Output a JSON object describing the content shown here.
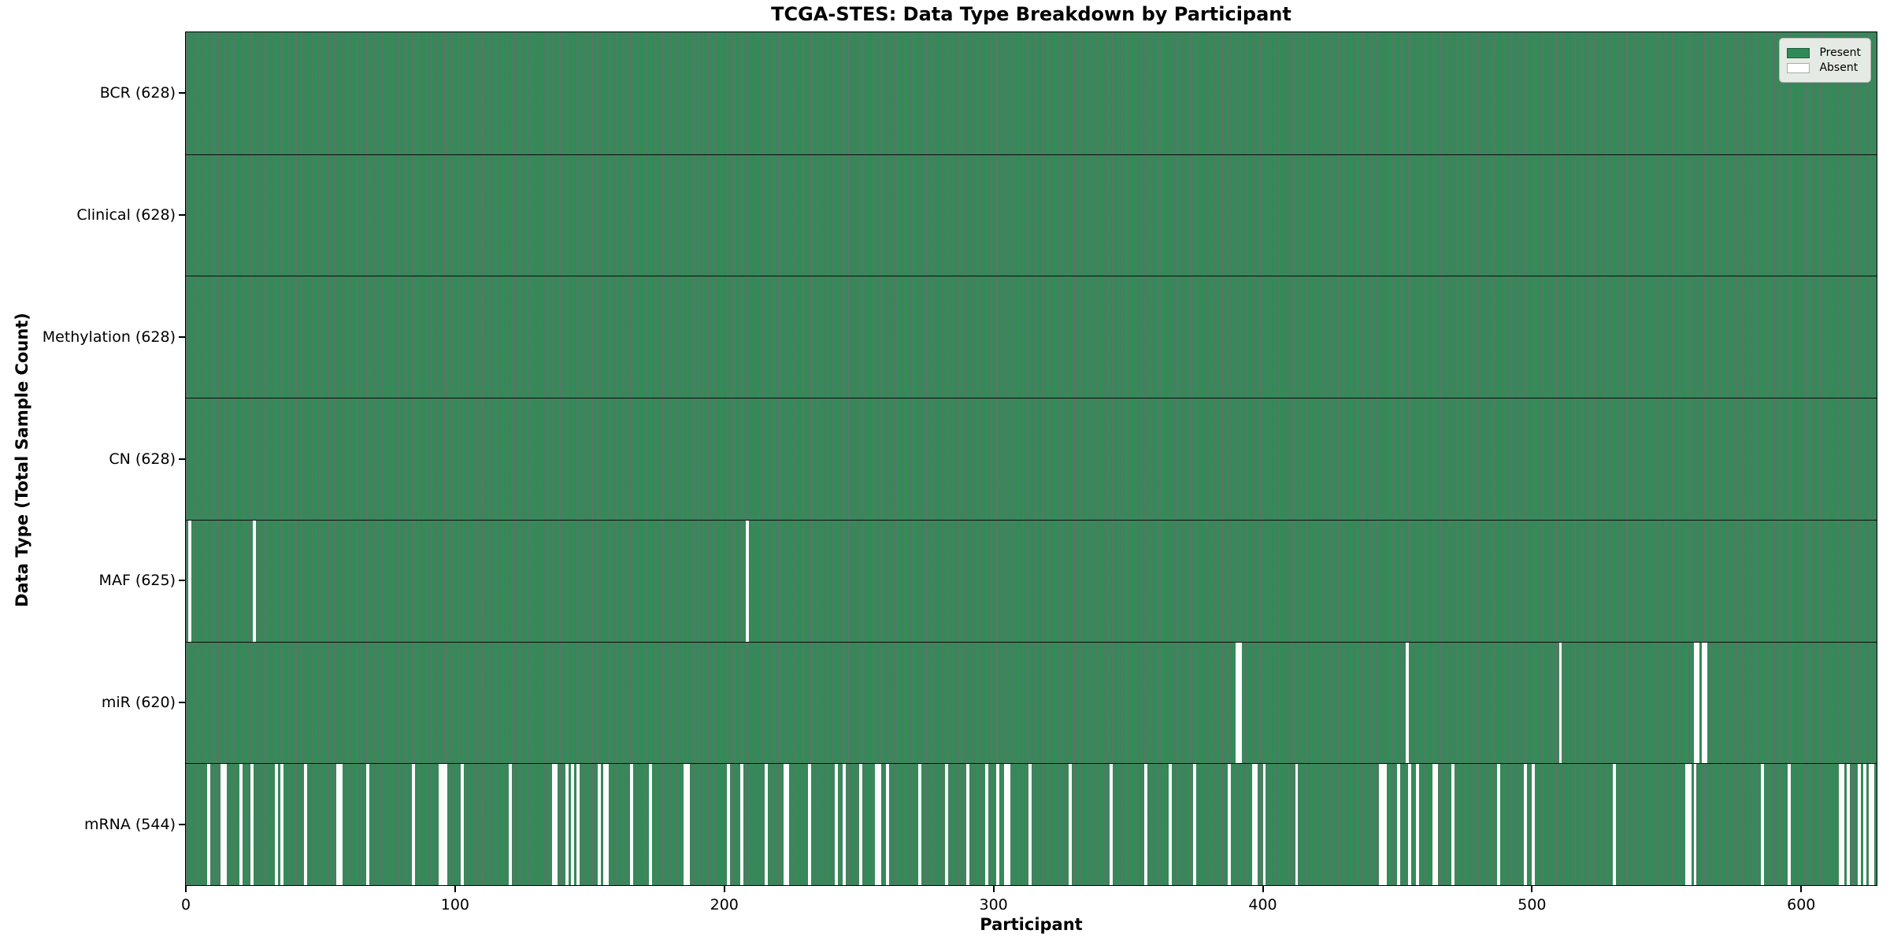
{
  "title": "TCGA-STES: Data Type Breakdown by Participant",
  "xlabel": "Participant",
  "ylabel": "Data Type (Total Sample Count)",
  "legend": {
    "present_label": "Present",
    "absent_label": "Absent"
  },
  "colors": {
    "present_fill": "#338a58",
    "bar_edge": "rgba(10,40,25,0.65)",
    "absent_fill": "#fcfcfc",
    "row_divider": "#0d0d0d",
    "legend_bg": "#f3f3f0"
  },
  "chart_data": {
    "type": "heatmap",
    "title": "TCGA-STES: Data Type Breakdown by Participant",
    "xlabel": "Participant",
    "ylabel": "Data Type (Total Sample Count)",
    "legend_entries": [
      "Present",
      "Absent"
    ],
    "legend_position": "upper right",
    "n_participants": 628,
    "x_ticks": [
      0,
      100,
      200,
      300,
      400,
      500,
      600
    ],
    "xlim": [
      0,
      628
    ],
    "grid": false,
    "rows": [
      {
        "label": "BCR",
        "total": 628,
        "absent_participants": []
      },
      {
        "label": "Clinical",
        "total": 628,
        "absent_participants": []
      },
      {
        "label": "Methylation",
        "total": 628,
        "absent_participants": []
      },
      {
        "label": "CN",
        "total": 628,
        "absent_participants": []
      },
      {
        "label": "MAF",
        "total": 625,
        "absent_participants": [
          1,
          25,
          208
        ]
      },
      {
        "label": "miR",
        "total": 620,
        "absent_participants": [
          390,
          391,
          453,
          510,
          560,
          561,
          563,
          564
        ]
      },
      {
        "label": "mRNA",
        "total": 544,
        "absent_participants": [
          8,
          13,
          14,
          20,
          24,
          33,
          35,
          44,
          56,
          57,
          67,
          84,
          94,
          95,
          96,
          102,
          120,
          136,
          137,
          141,
          143,
          145,
          153,
          155,
          156,
          165,
          172,
          185,
          186,
          201,
          206,
          215,
          222,
          223,
          231,
          241,
          244,
          250,
          256,
          257,
          260,
          272,
          282,
          290,
          297,
          301,
          304,
          305,
          313,
          328,
          343,
          356,
          365,
          374,
          387,
          396,
          397,
          400,
          412,
          443,
          444,
          445,
          450,
          454,
          457,
          463,
          464,
          470,
          487,
          497,
          500,
          530,
          557,
          558,
          560,
          585,
          595,
          614,
          615,
          617,
          621,
          623,
          625,
          626
        ]
      }
    ]
  }
}
